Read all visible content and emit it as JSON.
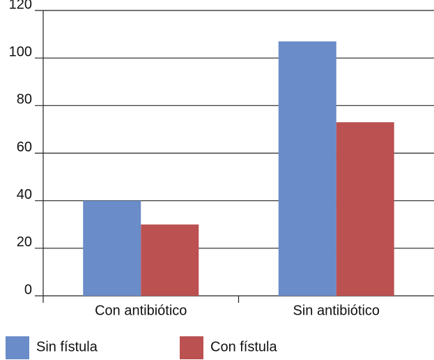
{
  "chart_data": {
    "type": "bar",
    "categories": [
      "Con antibiótico",
      "Sin antibiótico"
    ],
    "series": [
      {
        "name": "Sin fístula",
        "color": "#6a8cc8",
        "values": [
          40,
          107
        ]
      },
      {
        "name": "Con fístula",
        "color": "#bc5152",
        "values": [
          30,
          73
        ]
      }
    ],
    "ylim": [
      0,
      120
    ],
    "yticks": [
      0,
      20,
      40,
      60,
      80,
      100,
      120
    ],
    "grid": true,
    "legend": "bottom"
  }
}
